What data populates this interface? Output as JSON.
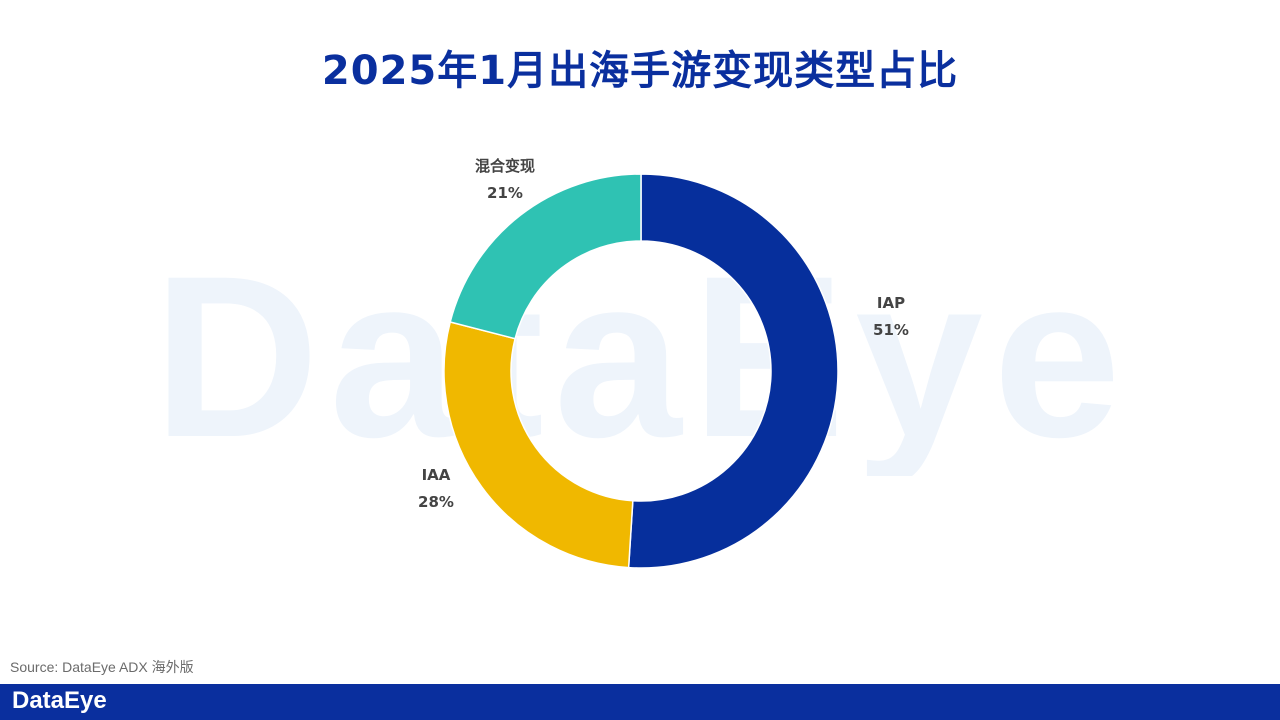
{
  "chart_data": {
    "type": "pie",
    "title": "2025年1月出海手游变现类型占比",
    "slices": [
      {
        "name": "IAP",
        "value": 51,
        "label": "51%",
        "color": "#062f9c"
      },
      {
        "name": "IAA",
        "value": 28,
        "label": "28%",
        "color": "#f0b800"
      },
      {
        "name": "混合变现",
        "value": 21,
        "label": "21%",
        "color": "#2fc2b3"
      }
    ],
    "donut": true
  },
  "watermark": "DataEye",
  "source": "Source: DataEye ADX 海外版",
  "footer": {
    "logo": "DataEye",
    "color": "#0a2f9e"
  }
}
